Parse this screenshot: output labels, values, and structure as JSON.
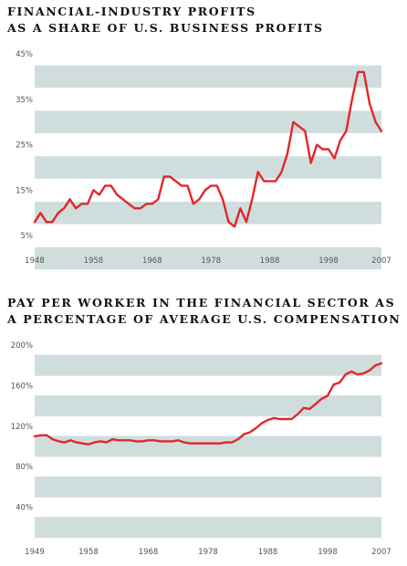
{
  "colors": {
    "band": "#cfdedd",
    "line": "#e3262b",
    "text": "#111111"
  },
  "chart_data": [
    {
      "type": "line",
      "title": [
        "FINANCIAL-INDUSTRY PROFITS",
        "AS A SHARE OF U.S. BUSINESS PROFITS"
      ],
      "xlabel": "",
      "ylabel": "",
      "x_ticks": [
        "1948",
        "1958",
        "1968",
        "1978",
        "1988",
        "1998",
        "2007"
      ],
      "y_ticks": [
        "45%",
        "35%",
        "25%",
        "15%",
        "5%"
      ],
      "xlim": [
        1948,
        2007
      ],
      "ylim": [
        0,
        45
      ],
      "series": [
        {
          "x": [
            1948,
            1949,
            1950,
            1951,
            1952,
            1953,
            1954,
            1955,
            1956,
            1957,
            1958,
            1959,
            1960,
            1961,
            1962,
            1963,
            1964,
            1965,
            1966,
            1967,
            1968,
            1969,
            1970,
            1971,
            1972,
            1973,
            1974,
            1975,
            1976,
            1977,
            1978,
            1979,
            1980,
            1981,
            1982,
            1983,
            1984,
            1985,
            1986,
            1987,
            1988,
            1989,
            1990,
            1991,
            1992,
            1993,
            1994,
            1995,
            1996,
            1997,
            1998,
            1999,
            2000,
            2001,
            2002,
            2003,
            2004,
            2005,
            2006,
            2007
          ],
          "values": [
            8,
            10,
            8,
            8,
            10,
            11,
            13,
            11,
            12,
            12,
            15,
            14,
            16,
            16,
            14,
            13,
            12,
            11,
            11,
            12,
            12,
            13,
            18,
            18,
            17,
            16,
            16,
            12,
            13,
            15,
            16,
            16,
            13,
            8,
            7,
            11,
            8,
            13,
            19,
            17,
            17,
            17,
            19,
            23,
            30,
            29,
            28,
            21,
            25,
            24,
            24,
            22,
            26,
            28,
            35,
            41,
            41,
            34,
            30,
            28
          ]
        }
      ]
    },
    {
      "type": "line",
      "title": [
        "PAY PER WORKER IN THE FINANCIAL SECTOR AS",
        "A PERCENTAGE OF AVERAGE U.S. COMPENSATION"
      ],
      "xlabel": "",
      "ylabel": "",
      "x_ticks": [
        "1949",
        "1958",
        "1968",
        "1978",
        "1988",
        "1998",
        "2007"
      ],
      "y_ticks": [
        "200%",
        "160%",
        "120%",
        "80%",
        "40%"
      ],
      "xlim": [
        1949,
        2007
      ],
      "ylim": [
        0,
        200
      ],
      "series": [
        {
          "x": [
            1949,
            1950,
            1951,
            1952,
            1953,
            1954,
            1955,
            1956,
            1957,
            1958,
            1959,
            1960,
            1961,
            1962,
            1963,
            1964,
            1965,
            1966,
            1967,
            1968,
            1969,
            1970,
            1971,
            1972,
            1973,
            1974,
            1975,
            1976,
            1977,
            1978,
            1979,
            1980,
            1981,
            1982,
            1983,
            1984,
            1985,
            1986,
            1987,
            1988,
            1989,
            1990,
            1991,
            1992,
            1993,
            1994,
            1995,
            1996,
            1997,
            1998,
            1999,
            2000,
            2001,
            2002,
            2003,
            2004,
            2005,
            2006,
            2007
          ],
          "values": [
            110,
            111,
            111,
            107,
            105,
            104,
            106,
            104,
            103,
            102,
            104,
            105,
            104,
            107,
            106,
            106,
            106,
            105,
            105,
            106,
            106,
            105,
            105,
            105,
            106,
            104,
            103,
            103,
            103,
            103,
            103,
            103,
            104,
            104,
            107,
            112,
            114,
            118,
            123,
            126,
            128,
            127,
            127,
            127,
            132,
            138,
            137,
            142,
            147,
            150,
            161,
            163,
            171,
            174,
            171,
            172,
            175,
            180,
            182
          ]
        }
      ]
    }
  ]
}
